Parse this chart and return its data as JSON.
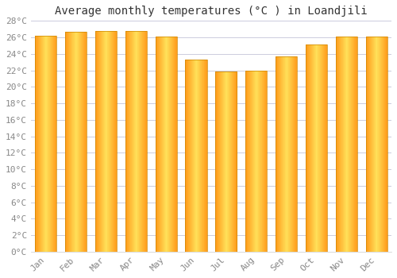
{
  "title": "Average monthly temperatures (°C ) in Loandjili",
  "months": [
    "Jan",
    "Feb",
    "Mar",
    "Apr",
    "May",
    "Jun",
    "Jul",
    "Aug",
    "Sep",
    "Oct",
    "Nov",
    "Dec"
  ],
  "values": [
    26.2,
    26.7,
    26.8,
    26.8,
    26.1,
    23.3,
    21.9,
    22.0,
    23.7,
    25.1,
    26.1,
    26.1
  ],
  "bar_color_center": "#FFD966",
  "bar_color_edge": "#FFA500",
  "ylim": [
    0,
    28
  ],
  "ytick_step": 2,
  "background_color": "#FFFFFF",
  "plot_bg_color": "#FFFFFF",
  "grid_color": "#CCCCDD",
  "title_fontsize": 10,
  "tick_fontsize": 8,
  "font_family": "monospace"
}
